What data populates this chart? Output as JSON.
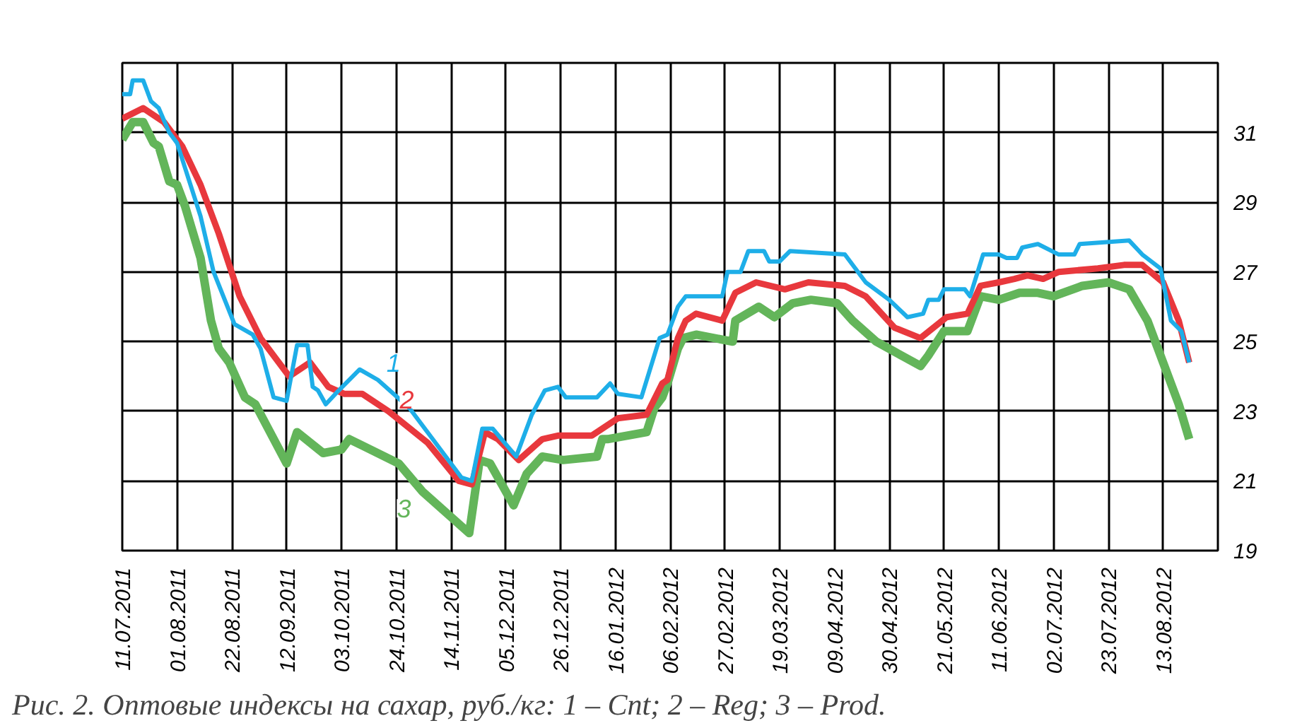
{
  "chart_data": {
    "type": "line",
    "title": "Рис. 2. Оптовые индексы на сахар, руб./кг: 1 – Cnt; 2 – Reg; 3 – Prod.",
    "series": [
      {
        "name": "1",
        "color": "#1eaee8",
        "x": [
          "2011-07-11",
          "2011-07-14",
          "2011-07-15",
          "2011-07-19",
          "2011-07-22",
          "2011-07-25",
          "2011-07-29",
          "2011-08-01",
          "2011-08-04",
          "2011-08-10",
          "2011-08-15",
          "2011-08-23",
          "2011-08-30",
          "2011-09-02",
          "2011-09-07",
          "2011-09-12",
          "2011-09-16",
          "2011-09-20",
          "2011-09-22",
          "2011-09-24",
          "2011-09-27",
          "2011-10-02",
          "2011-10-10",
          "2011-10-17",
          "2011-10-29",
          "2011-11-07",
          "2011-11-18",
          "2011-11-22",
          "2011-11-26",
          "2011-11-30",
          "2011-12-09",
          "2011-12-15",
          "2011-12-20",
          "2011-12-25",
          "2011-12-28",
          "2012-01-09",
          "2012-01-14",
          "2012-01-17",
          "2012-01-26",
          "2012-02-02",
          "2012-02-05",
          "2012-02-09",
          "2012-02-12",
          "2012-02-26",
          "2012-02-28",
          "2012-03-04",
          "2012-03-07",
          "2012-03-13",
          "2012-03-15",
          "2012-03-19",
          "2012-03-23",
          "2012-04-13",
          "2012-04-21",
          "2012-04-30",
          "2012-05-07",
          "2012-05-13",
          "2012-05-15",
          "2012-05-19",
          "2012-05-21",
          "2012-05-29",
          "2012-05-31",
          "2012-06-05",
          "2012-06-11",
          "2012-06-14",
          "2012-06-18",
          "2012-06-20",
          "2012-06-26",
          "2012-07-04",
          "2012-07-10",
          "2012-07-12",
          "2012-07-31",
          "2012-08-05",
          "2012-08-12",
          "2012-08-16",
          "2012-08-20",
          "2012-08-23"
        ],
        "values": [
          32.1,
          32.1,
          32.5,
          32.5,
          31.9,
          31.7,
          31.0,
          30.7,
          30.0,
          28.6,
          27.0,
          25.5,
          25.2,
          24.8,
          23.4,
          23.3,
          24.9,
          24.9,
          23.7,
          23.6,
          23.2,
          23.6,
          24.2,
          23.9,
          23.1,
          22.2,
          21.1,
          21.0,
          22.5,
          22.5,
          21.7,
          22.9,
          23.6,
          23.7,
          23.4,
          23.4,
          23.8,
          23.5,
          23.4,
          25.1,
          25.2,
          26.0,
          26.3,
          26.3,
          27.0,
          27.0,
          27.6,
          27.6,
          27.3,
          27.3,
          27.6,
          27.5,
          26.7,
          26.2,
          25.7,
          25.8,
          26.2,
          26.2,
          26.5,
          26.5,
          26.3,
          27.5,
          27.5,
          27.4,
          27.4,
          27.7,
          27.8,
          27.5,
          27.5,
          27.8,
          27.9,
          27.5,
          27.1,
          25.6,
          25.3,
          24.4
        ]
      },
      {
        "name": "2",
        "color": "#e8383d",
        "x": [
          "2011-07-11",
          "2011-07-19",
          "2011-07-27",
          "2011-08-03",
          "2011-08-10",
          "2011-08-17",
          "2011-08-25",
          "2011-09-02",
          "2011-09-13",
          "2011-09-21",
          "2011-09-28",
          "2011-10-04",
          "2011-10-11",
          "2011-10-21",
          "2011-11-05",
          "2011-11-17",
          "2011-11-22",
          "2011-11-27",
          "2011-12-02",
          "2011-12-10",
          "2011-12-19",
          "2011-12-25",
          "2012-01-07",
          "2012-01-17",
          "2012-01-28",
          "2012-02-03",
          "2012-02-05",
          "2012-02-09",
          "2012-02-12",
          "2012-02-16",
          "2012-02-26",
          "2012-03-02",
          "2012-03-10",
          "2012-03-21",
          "2012-03-30",
          "2012-04-13",
          "2012-04-21",
          "2012-05-02",
          "2012-05-12",
          "2012-05-22",
          "2012-05-30",
          "2012-06-04",
          "2012-06-11",
          "2012-06-17",
          "2012-06-22",
          "2012-06-28",
          "2012-07-04",
          "2012-07-19",
          "2012-07-29",
          "2012-08-05",
          "2012-08-13",
          "2012-08-19",
          "2012-08-23"
        ],
        "values": [
          31.4,
          31.7,
          31.3,
          30.6,
          29.5,
          28.1,
          26.3,
          25.1,
          24.0,
          24.4,
          23.7,
          23.5,
          23.5,
          23.0,
          22.1,
          21.0,
          20.9,
          22.4,
          22.2,
          21.6,
          22.2,
          22.3,
          22.3,
          22.8,
          22.9,
          23.8,
          23.9,
          25.1,
          25.6,
          25.8,
          25.6,
          26.4,
          26.7,
          26.5,
          26.7,
          26.6,
          26.3,
          25.4,
          25.1,
          25.7,
          25.8,
          26.6,
          26.7,
          26.8,
          26.9,
          26.8,
          27.0,
          27.1,
          27.2,
          27.2,
          26.7,
          25.6,
          24.4
        ]
      },
      {
        "name": "3",
        "color": "#63b55a",
        "x": [
          "2011-07-11",
          "2011-07-15",
          "2011-07-19",
          "2011-07-23",
          "2011-07-25",
          "2011-07-29",
          "2011-08-01",
          "2011-08-04",
          "2011-08-10",
          "2011-08-14",
          "2011-08-17",
          "2011-08-21",
          "2011-08-27",
          "2011-08-31",
          "2011-09-12",
          "2011-09-16",
          "2011-09-26",
          "2011-10-03",
          "2011-10-06",
          "2011-10-25",
          "2011-11-03",
          "2011-11-21",
          "2011-11-25",
          "2011-11-29",
          "2011-12-08",
          "2011-12-13",
          "2011-12-19",
          "2011-12-27",
          "2012-01-09",
          "2012-01-11",
          "2012-01-13",
          "2012-01-28",
          "2012-01-31",
          "2012-02-03",
          "2012-02-05",
          "2012-02-09",
          "2012-02-11",
          "2012-02-16",
          "2012-03-01",
          "2012-03-02",
          "2012-03-11",
          "2012-03-17",
          "2012-03-24",
          "2012-03-31",
          "2012-04-10",
          "2012-04-16",
          "2012-04-25",
          "2012-05-12",
          "2012-05-15",
          "2012-05-21",
          "2012-05-30",
          "2012-06-04",
          "2012-06-11",
          "2012-06-19",
          "2012-06-26",
          "2012-07-02",
          "2012-07-13",
          "2012-07-23",
          "2012-07-31",
          "2012-08-07",
          "2012-08-13",
          "2012-08-19",
          "2012-08-23"
        ],
        "values": [
          30.8,
          31.3,
          31.3,
          30.7,
          30.6,
          29.6,
          29.5,
          28.9,
          27.4,
          25.6,
          24.8,
          24.4,
          23.4,
          23.2,
          21.5,
          22.4,
          21.8,
          21.9,
          22.2,
          21.5,
          20.7,
          19.5,
          21.6,
          21.5,
          20.3,
          21.2,
          21.7,
          21.6,
          21.7,
          22.2,
          22.2,
          22.4,
          23.1,
          23.4,
          23.8,
          24.8,
          25.1,
          25.2,
          25.0,
          25.6,
          26.0,
          25.7,
          26.1,
          26.2,
          26.1,
          25.6,
          25.0,
          24.3,
          24.6,
          25.3,
          25.3,
          26.3,
          26.2,
          26.4,
          26.4,
          26.3,
          26.6,
          26.7,
          26.5,
          25.6,
          24.4,
          23.2,
          22.2
        ]
      }
    ],
    "xlim": [
      "2011-07-11",
      "2012-09-03"
    ],
    "xticks": [
      {
        "value": "2011-07-11",
        "label": "11.07.2011"
      },
      {
        "value": "2011-08-01",
        "label": "01.08.2011"
      },
      {
        "value": "2011-08-22",
        "label": "22.08.2011"
      },
      {
        "value": "2011-09-12",
        "label": "12.09.2011"
      },
      {
        "value": "2011-10-03",
        "label": "03.10.2011"
      },
      {
        "value": "2011-10-24",
        "label": "24.10.2011"
      },
      {
        "value": "2011-11-14",
        "label": "14.11.2011"
      },
      {
        "value": "2011-12-05",
        "label": "05.12.2011"
      },
      {
        "value": "2011-12-26",
        "label": "26.12.2011"
      },
      {
        "value": "2012-01-16",
        "label": "16.01.2012"
      },
      {
        "value": "2012-02-06",
        "label": "06.02.2012"
      },
      {
        "value": "2012-02-27",
        "label": "27.02.2012"
      },
      {
        "value": "2012-03-19",
        "label": "19.03.2012"
      },
      {
        "value": "2012-04-09",
        "label": "09.04.2012"
      },
      {
        "value": "2012-04-30",
        "label": "30.04.2012"
      },
      {
        "value": "2012-05-21",
        "label": "21.05.2012"
      },
      {
        "value": "2012-06-11",
        "label": "11.06.2012"
      },
      {
        "value": "2012-07-02",
        "label": "02.07.2012"
      },
      {
        "value": "2012-07-23",
        "label": "23.07.2012"
      },
      {
        "value": "2012-08-13",
        "label": "13.08.2012"
      }
    ],
    "ylim": [
      19,
      33
    ],
    "yticks": [
      19,
      21,
      23,
      25,
      27,
      29,
      31
    ],
    "grid": true,
    "line_style": "solid"
  }
}
